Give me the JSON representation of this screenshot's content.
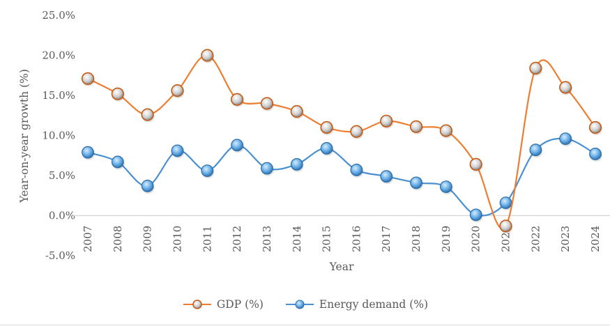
{
  "chart_data": {
    "type": "line",
    "title": "",
    "xlabel": "Year",
    "ylabel": "Year-on-year growth (%)",
    "ylim": [
      -5,
      25
    ],
    "yticks": [
      -5,
      0,
      5,
      10,
      15,
      20,
      25
    ],
    "ytick_labels": [
      "-5.0%",
      "0.0%",
      "5.0%",
      "10.0%",
      "15.0%",
      "20.0%",
      "25.0%"
    ],
    "grid": false,
    "legend_position": "bottom",
    "categories": [
      "2007",
      "2008",
      "2009",
      "2010",
      "2011",
      "2012",
      "2013",
      "2014",
      "2015",
      "2016",
      "2017",
      "2018",
      "2019",
      "2020",
      "2021",
      "2022",
      "2023",
      "2024"
    ],
    "series": [
      {
        "name": "GDP (%)",
        "color": "#ED7D31",
        "smooth": true,
        "values": [
          17.1,
          15.2,
          12.6,
          15.6,
          20.0,
          14.5,
          14.0,
          13.0,
          11.0,
          10.5,
          11.8,
          11.1,
          10.6,
          6.4,
          -1.3,
          18.4,
          16.0,
          11.0
        ]
      },
      {
        "name": "Energy demand (%)",
        "color": "#4A90D0",
        "smooth": true,
        "values": [
          7.9,
          6.7,
          3.7,
          8.1,
          5.6,
          8.8,
          5.9,
          6.4,
          8.4,
          5.7,
          4.9,
          4.1,
          3.6,
          0.1,
          1.6,
          8.2,
          9.6,
          7.7
        ]
      }
    ]
  }
}
